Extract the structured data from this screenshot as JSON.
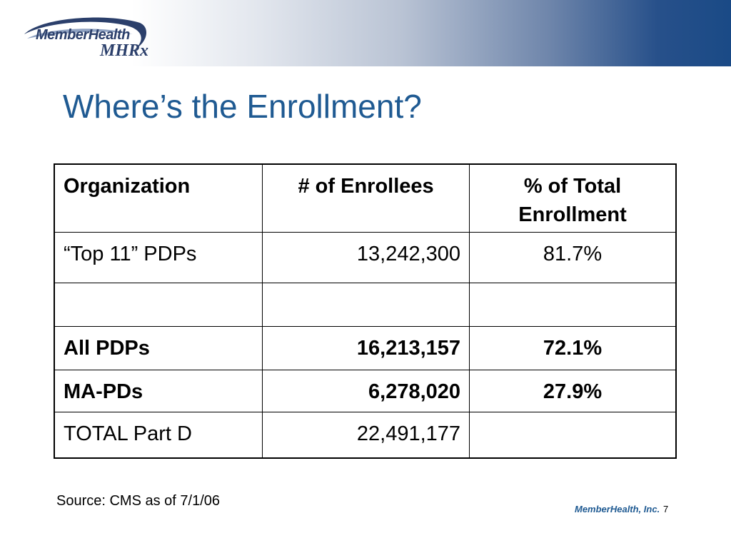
{
  "header": {
    "logo_text": "MemberHealth",
    "logo_mark": "MHRx",
    "brand_colors": {
      "navy": "#2b3f6b",
      "blue": "#1f5a92",
      "band_dark": "#1a4a86"
    }
  },
  "title": "Where’s the Enrollment?",
  "table": {
    "headers": [
      "Organization",
      "# of Enrollees",
      "% of Total Enrollment"
    ],
    "rows": [
      [
        "“Top 11” PDPs",
        "13,242,300",
        "81.7%"
      ],
      [
        "",
        "",
        ""
      ],
      [
        "All PDPs",
        "16,213,157",
        "72.1%"
      ],
      [
        "MA-PDs",
        "6,278,020",
        "27.9%"
      ],
      [
        "TOTAL Part D",
        "22,491,177",
        ""
      ]
    ]
  },
  "source": "Source: CMS as of 7/1/06",
  "footer": {
    "company": "MemberHealth, Inc.",
    "page_number": "7"
  }
}
